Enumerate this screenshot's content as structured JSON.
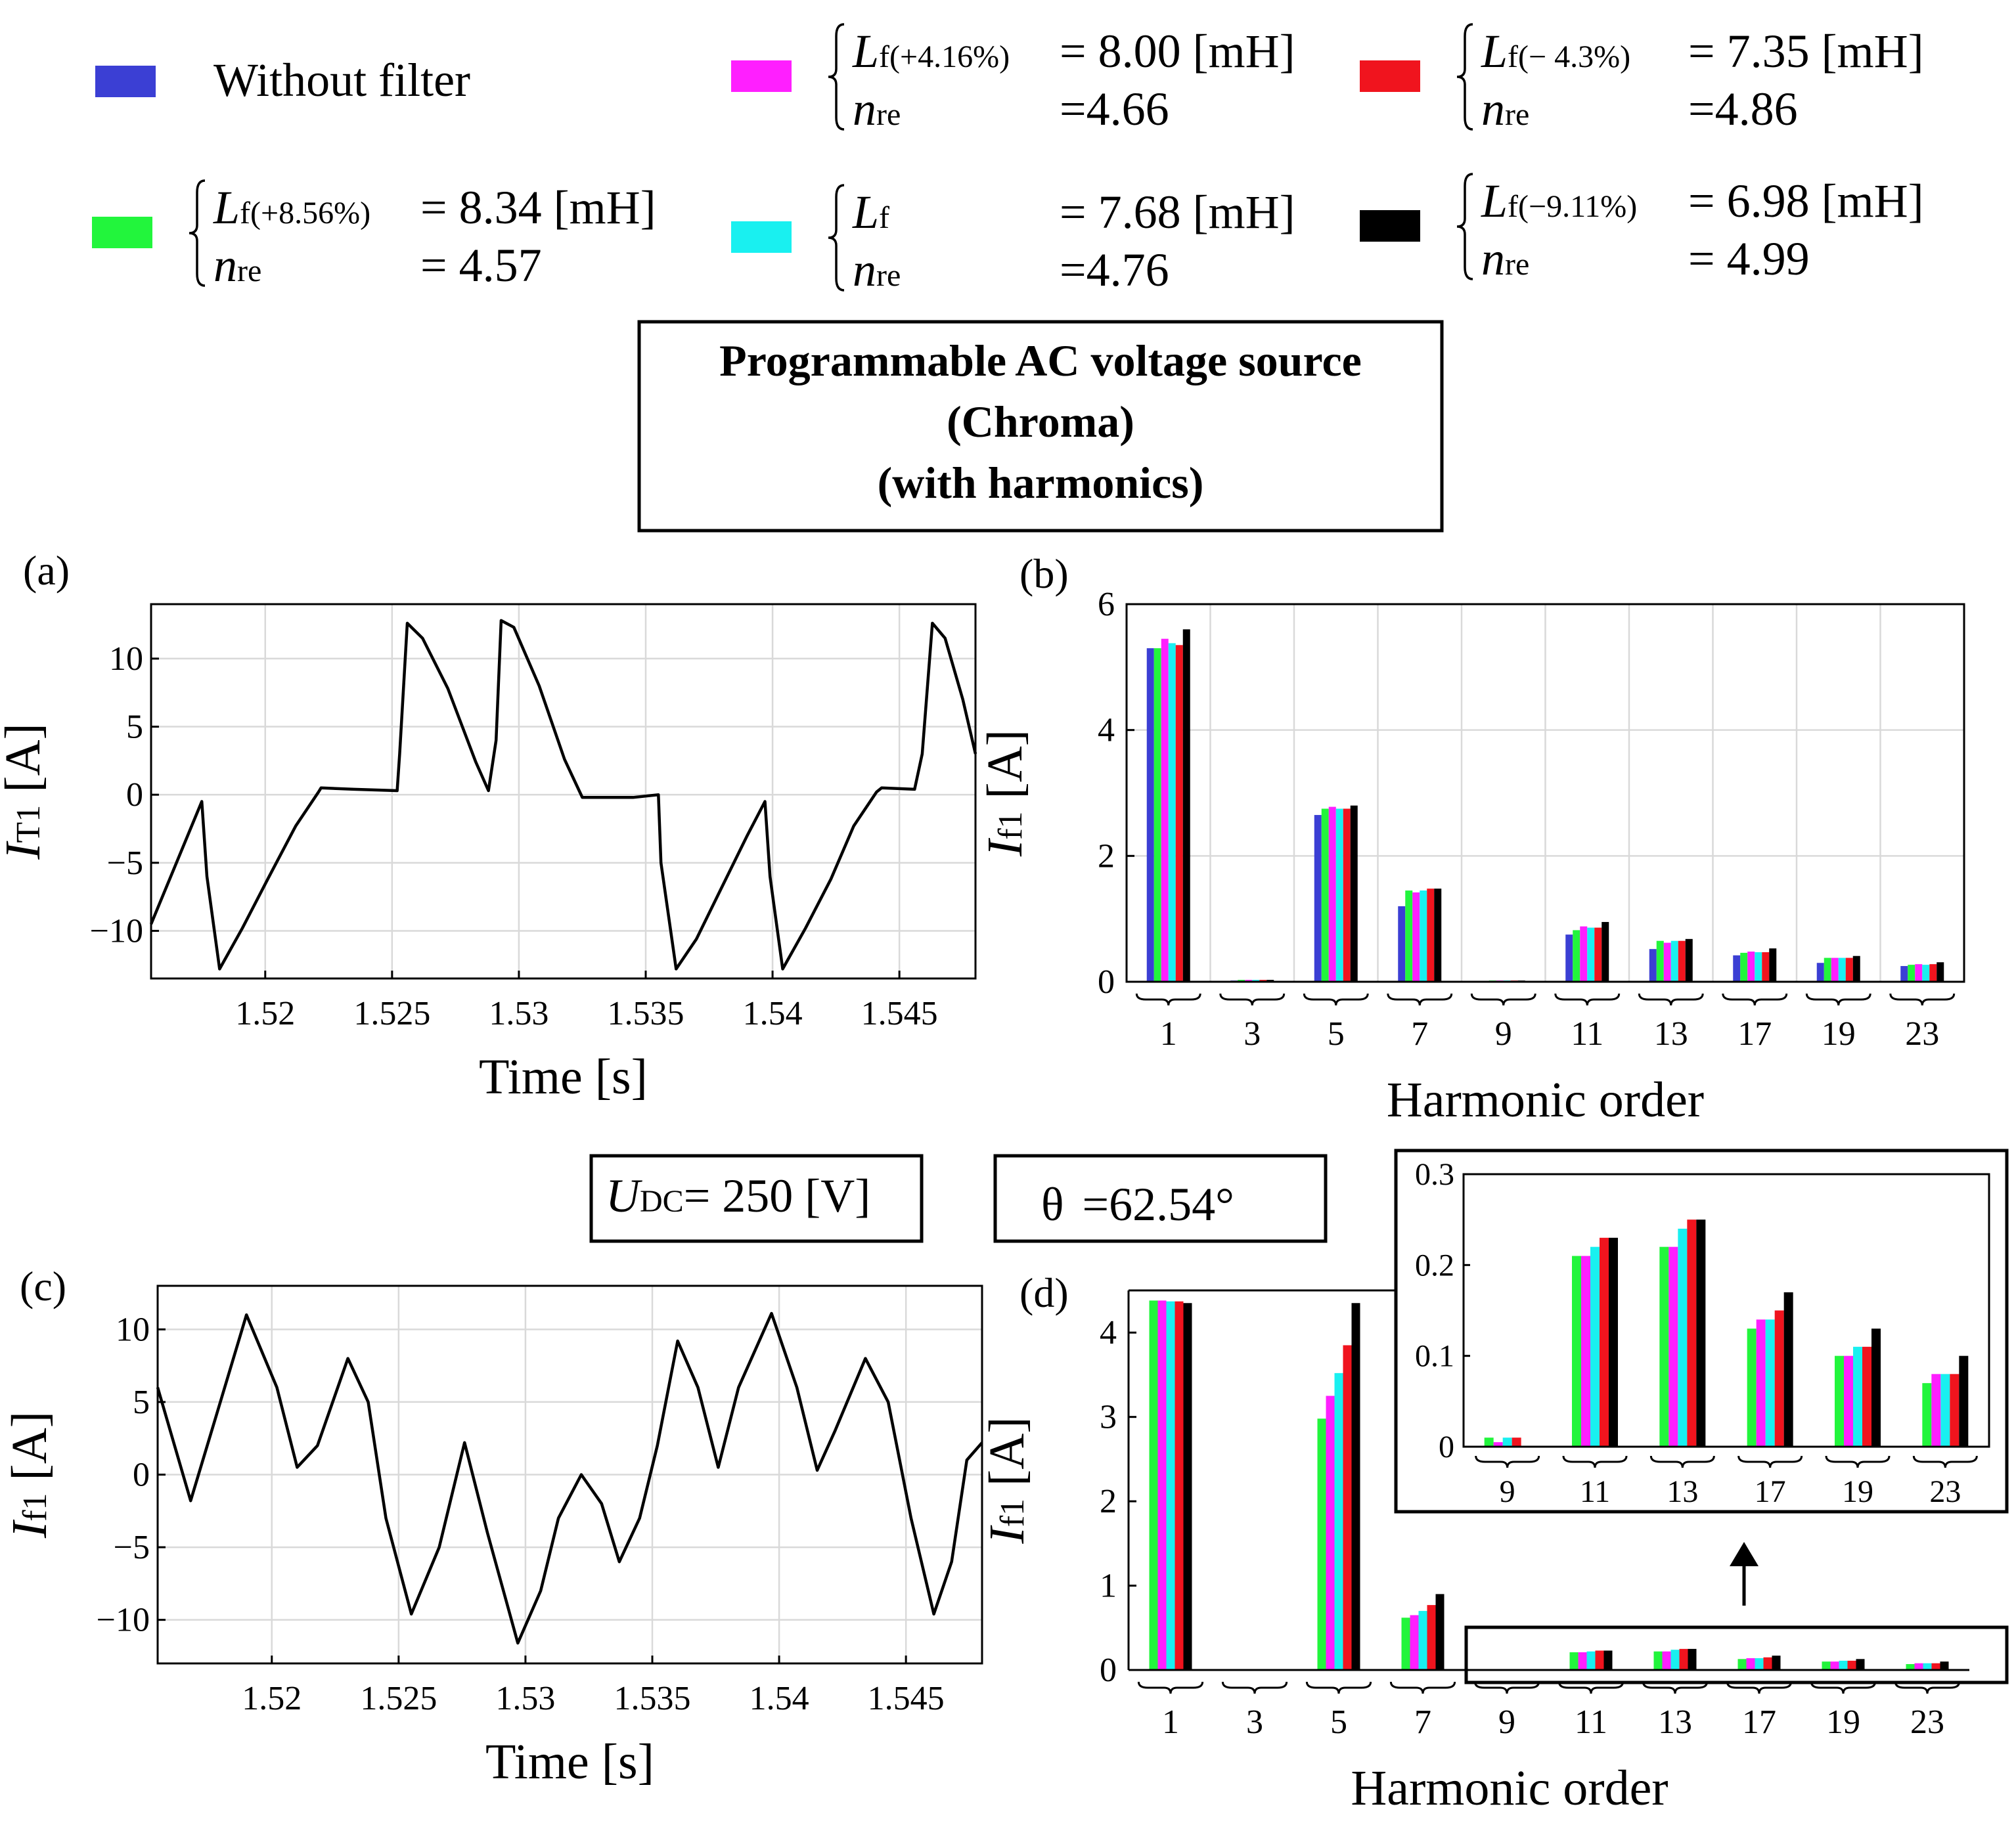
{
  "legend": [
    {
      "id": "without",
      "color": "#3b3fd4",
      "label": "Without filter"
    },
    {
      "id": "p416",
      "color": "#ff1fff",
      "brace": true,
      "L_name": "L",
      "L_sub": "f(+4.16%)",
      "L_value": "= 8.00",
      "L_unit": "[mH]",
      "n_name": "n",
      "n_sub": "re",
      "n_value": "=4.66"
    },
    {
      "id": "m43",
      "color": "#f0141e",
      "brace": true,
      "L_name": "L",
      "L_sub": "f(− 4.3%)",
      "L_value": "= 7.35",
      "L_unit": "[mH]",
      "n_name": "n",
      "n_sub": "re",
      "n_value": "=4.86"
    },
    {
      "id": "p856",
      "color": "#22f53c",
      "brace": true,
      "L_name": "L",
      "L_sub": "f(+8.56%)",
      "L_value": "= 8.34",
      "L_unit": "[mH]",
      "n_name": "n",
      "n_sub": "re",
      "n_value": "= 4.57"
    },
    {
      "id": "nom",
      "color": "#19f0f0",
      "brace": true,
      "L_name": "L",
      "L_sub": "f",
      "L_value": "= 7.68",
      "L_unit": "[mH]",
      "n_name": "n",
      "n_sub": "re",
      "n_value": "=4.76"
    },
    {
      "id": "m911",
      "color": "#000000",
      "brace": true,
      "L_name": "L",
      "L_sub": "f(−9.11%)",
      "L_value": "= 6.98",
      "L_unit": "[mH]",
      "n_name": "n",
      "n_sub": "re",
      "n_value": "= 4.99"
    }
  ],
  "source_box": {
    "line1": "Programmable AC voltage source",
    "line2": "(Chroma)",
    "line3": "(with harmonics)"
  },
  "udc_box": {
    "symbol": "U",
    "sub": "DC",
    "value": "= 250 [V]"
  },
  "theta_box": {
    "symbol": "θ",
    "value": "=62.54°"
  },
  "chart_data": [
    {
      "panel": "(a)",
      "type": "line",
      "xlabel": "Time [s]",
      "ylabel": "I",
      "ylabel_sub": "T1",
      "ylabel_unit": "[A]",
      "xlim": [
        1.5155,
        1.548
      ],
      "ylim": [
        -13.5,
        14
      ],
      "xticks": [
        1.52,
        1.525,
        1.53,
        1.535,
        1.54,
        1.545
      ],
      "xtick_labels": [
        "1.52",
        "1.525",
        "1.53",
        "1.535",
        "1.54",
        "1.545"
      ],
      "yticks": [
        -10,
        -5,
        0,
        5,
        10
      ],
      "ytick_labels": [
        "−10",
        "−5",
        "0",
        "5",
        "10"
      ],
      "grid": true,
      "series": [
        {
          "name": "iT1",
          "color": "#000000",
          "points": [
            [
              1.5155,
              -9.5
            ],
            [
              1.5175,
              -0.5
            ],
            [
              1.5177,
              -6
            ],
            [
              1.5182,
              -12.8
            ],
            [
              1.5191,
              -9.8
            ],
            [
              1.5201,
              -6.2
            ],
            [
              1.5212,
              -2.3
            ],
            [
              1.5221,
              0.2
            ],
            [
              1.5222,
              0.5
            ],
            [
              1.5235,
              0.4
            ],
            [
              1.5252,
              0.3
            ],
            [
              1.5253,
              3
            ],
            [
              1.5256,
              12.6
            ],
            [
              1.5262,
              11.5
            ],
            [
              1.5272,
              7.8
            ],
            [
              1.5283,
              2.4
            ],
            [
              1.5288,
              0.3
            ],
            [
              1.5291,
              4
            ],
            [
              1.5293,
              12.8
            ],
            [
              1.5298,
              12.3
            ],
            [
              1.5308,
              8
            ],
            [
              1.5318,
              2.6
            ],
            [
              1.5324,
              0.2
            ],
            [
              1.5325,
              -0.2
            ],
            [
              1.5345,
              -0.2
            ],
            [
              1.5355,
              0
            ],
            [
              1.5356,
              -5
            ],
            [
              1.5362,
              -12.8
            ],
            [
              1.537,
              -10.6
            ],
            [
              1.538,
              -6.8
            ],
            [
              1.539,
              -3
            ],
            [
              1.5397,
              -0.5
            ],
            [
              1.5399,
              -6
            ],
            [
              1.5404,
              -12.8
            ],
            [
              1.5413,
              -9.8
            ],
            [
              1.5423,
              -6.2
            ],
            [
              1.5432,
              -2.3
            ],
            [
              1.5441,
              0.2
            ],
            [
              1.5443,
              0.5
            ],
            [
              1.5456,
              0.4
            ],
            [
              1.5459,
              3
            ],
            [
              1.5463,
              12.6
            ],
            [
              1.5468,
              11.5
            ],
            [
              1.5475,
              7
            ],
            [
              1.548,
              3
            ]
          ]
        }
      ]
    },
    {
      "panel": "(b)",
      "type": "bar",
      "xlabel": "Harmonic order",
      "ylabel": "I",
      "ylabel_sub": "f1",
      "ylabel_unit": "[A]",
      "categories": [
        "1",
        "3",
        "5",
        "7",
        "9",
        "11",
        "13",
        "17",
        "19",
        "23"
      ],
      "ylim": [
        0,
        6
      ],
      "yticks": [
        0,
        2,
        4,
        6
      ],
      "ytick_labels": [
        "0",
        "2",
        "4",
        "6"
      ],
      "grid": true,
      "series": [
        {
          "name": "Without filter",
          "color": "#3b3fd4",
          "values": [
            5.3,
            0.02,
            2.65,
            1.2,
            0.0,
            0.75,
            0.52,
            0.42,
            0.3,
            0.25
          ]
        },
        {
          "name": "Lf(+8.56%)",
          "color": "#22f53c",
          "values": [
            5.3,
            0.03,
            2.75,
            1.45,
            0.02,
            0.82,
            0.65,
            0.46,
            0.38,
            0.27
          ]
        },
        {
          "name": "Lf(+4.16%)",
          "color": "#ff1fff",
          "values": [
            5.45,
            0.03,
            2.78,
            1.42,
            0.02,
            0.88,
            0.62,
            0.48,
            0.38,
            0.28
          ]
        },
        {
          "name": "Lf",
          "color": "#19f0f0",
          "values": [
            5.38,
            0.03,
            2.75,
            1.45,
            0.02,
            0.86,
            0.65,
            0.47,
            0.38,
            0.27
          ]
        },
        {
          "name": "Lf(−4.3%)",
          "color": "#f0141e",
          "values": [
            5.35,
            0.03,
            2.75,
            1.48,
            0.02,
            0.86,
            0.65,
            0.47,
            0.38,
            0.28
          ]
        },
        {
          "name": "Lf(−9.11%)",
          "color": "#000000",
          "values": [
            5.6,
            0.03,
            2.8,
            1.48,
            0.02,
            0.95,
            0.68,
            0.53,
            0.41,
            0.31
          ]
        }
      ]
    },
    {
      "panel": "(c)",
      "type": "line",
      "xlabel": "Time [s]",
      "ylabel": "I",
      "ylabel_sub": "f1",
      "ylabel_unit": "[A]",
      "xlim": [
        1.5155,
        1.548
      ],
      "ylim": [
        -13,
        13
      ],
      "xticks": [
        1.52,
        1.525,
        1.53,
        1.535,
        1.54,
        1.545
      ],
      "xtick_labels": [
        "1.52",
        "1.525",
        "1.53",
        "1.535",
        "1.54",
        "1.545"
      ],
      "yticks": [
        -10,
        -5,
        0,
        5,
        10
      ],
      "ytick_labels": [
        "−10",
        "−5",
        "0",
        "5",
        "10"
      ],
      "grid": true,
      "series": [
        {
          "name": "if1",
          "color": "#000000",
          "points": [
            [
              1.5155,
              6
            ],
            [
              1.5168,
              -1.8
            ],
            [
              1.5178,
              4
            ],
            [
              1.519,
              11
            ],
            [
              1.5202,
              6
            ],
            [
              1.521,
              0.5
            ],
            [
              1.5218,
              2
            ],
            [
              1.523,
              8
            ],
            [
              1.5238,
              5
            ],
            [
              1.5245,
              -3
            ],
            [
              1.5255,
              -9.6
            ],
            [
              1.5266,
              -5
            ],
            [
              1.5276,
              2.2
            ],
            [
              1.5285,
              -4
            ],
            [
              1.5297,
              -11.6
            ],
            [
              1.5306,
              -8
            ],
            [
              1.5313,
              -3
            ],
            [
              1.5322,
              0
            ],
            [
              1.533,
              -2
            ],
            [
              1.5337,
              -6
            ],
            [
              1.5345,
              -3
            ],
            [
              1.5352,
              2
            ],
            [
              1.536,
              9.2
            ],
            [
              1.5368,
              6
            ],
            [
              1.5376,
              0.5
            ],
            [
              1.5384,
              6
            ],
            [
              1.5397,
              11.1
            ],
            [
              1.5407,
              6
            ],
            [
              1.5415,
              0.3
            ],
            [
              1.5422,
              3
            ],
            [
              1.5434,
              8
            ],
            [
              1.5443,
              5
            ],
            [
              1.5452,
              -3
            ],
            [
              1.5461,
              -9.6
            ],
            [
              1.5468,
              -6
            ],
            [
              1.5474,
              1
            ],
            [
              1.548,
              2.2
            ]
          ]
        }
      ]
    },
    {
      "panel": "(d)",
      "type": "bar",
      "xlabel": "Harmonic order",
      "ylabel": "I",
      "ylabel_sub": "f1",
      "ylabel_unit": "[A]",
      "categories": [
        "1",
        "3",
        "5",
        "7",
        "9",
        "11",
        "13",
        "17",
        "19",
        "23"
      ],
      "ylim": [
        0,
        4.5
      ],
      "yticks": [
        0,
        1,
        2,
        3,
        4
      ],
      "ytick_labels": [
        "0",
        "1",
        "2",
        "3",
        "4"
      ],
      "grid": false,
      "series": [
        {
          "name": "Lf(+8.56%)",
          "color": "#22f53c",
          "values": [
            4.38,
            0,
            2.98,
            0.62,
            0.01,
            0.21,
            0.22,
            0.13,
            0.1,
            0.07
          ]
        },
        {
          "name": "Lf(+4.16%)",
          "color": "#ff1fff",
          "values": [
            4.38,
            0,
            3.25,
            0.65,
            0.005,
            0.21,
            0.22,
            0.14,
            0.1,
            0.08
          ]
        },
        {
          "name": "Lf",
          "color": "#19f0f0",
          "values": [
            4.37,
            0,
            3.52,
            0.7,
            0.01,
            0.22,
            0.24,
            0.14,
            0.11,
            0.08
          ]
        },
        {
          "name": "Lf(−4.3%)",
          "color": "#f0141e",
          "values": [
            4.37,
            0,
            3.85,
            0.77,
            0.01,
            0.23,
            0.25,
            0.15,
            0.11,
            0.08
          ]
        },
        {
          "name": "Lf(−9.11%)",
          "color": "#000000",
          "values": [
            4.35,
            0,
            4.35,
            0.9,
            0.0,
            0.23,
            0.25,
            0.17,
            0.13,
            0.1
          ]
        }
      ],
      "inset": {
        "categories": [
          "9",
          "11",
          "13",
          "17",
          "19",
          "23"
        ],
        "ylim": [
          0,
          0.3
        ],
        "yticks": [
          0,
          0.1,
          0.2,
          0.3
        ],
        "ytick_labels": [
          "0",
          "0.1",
          "0.2",
          "0.3"
        ]
      }
    }
  ]
}
